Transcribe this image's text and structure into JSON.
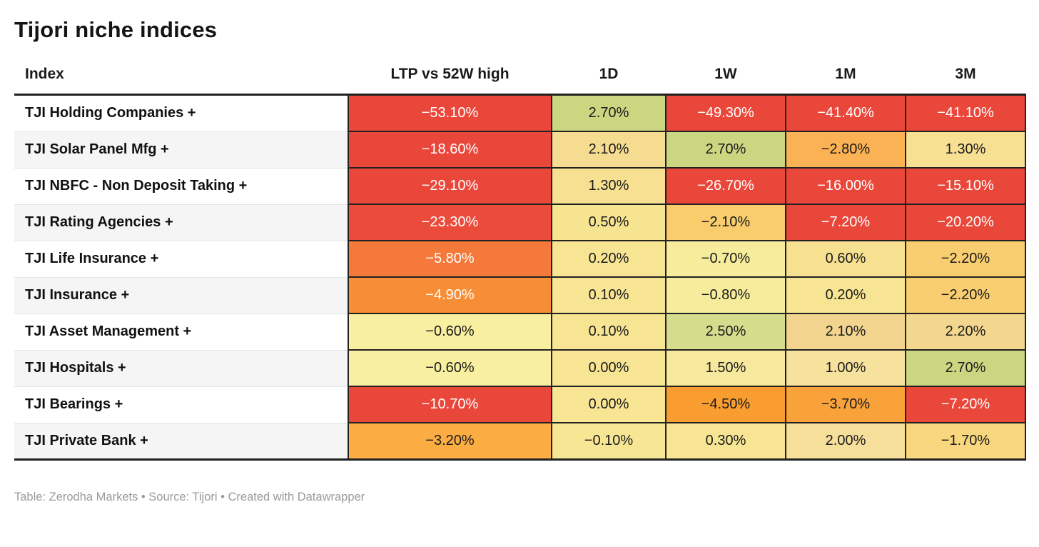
{
  "title": "Tijori niche indices",
  "footer": {
    "text": "Table: Zerodha Markets • Source: Tijori • Created with Datawrapper"
  },
  "table": {
    "columns": [
      {
        "label": "Index"
      },
      {
        "label": "LTP vs 52W high"
      },
      {
        "label": "1D"
      },
      {
        "label": "1W"
      },
      {
        "label": "1M"
      },
      {
        "label": "3M"
      }
    ],
    "rows": [
      {
        "label": "TJI Holding Companies +",
        "cells": [
          {
            "v": "−53.10%",
            "bg": "#EA473B",
            "fg": "#FFFFFF"
          },
          {
            "v": "2.70%",
            "bg": "#CBD681",
            "fg": "#1A1A1A"
          },
          {
            "v": "−49.30%",
            "bg": "#EA473B",
            "fg": "#FFFFFF"
          },
          {
            "v": "−41.40%",
            "bg": "#EA473B",
            "fg": "#FFFFFF"
          },
          {
            "v": "−41.10%",
            "bg": "#EA473B",
            "fg": "#FFFFFF"
          }
        ]
      },
      {
        "label": "TJI Solar Panel Mfg +",
        "cells": [
          {
            "v": "−18.60%",
            "bg": "#EA473B",
            "fg": "#FFFFFF"
          },
          {
            "v": "2.10%",
            "bg": "#F5DC90",
            "fg": "#1A1A1A"
          },
          {
            "v": "2.70%",
            "bg": "#CBD681",
            "fg": "#1A1A1A"
          },
          {
            "v": "−2.80%",
            "bg": "#FBB254",
            "fg": "#1A1A1A"
          },
          {
            "v": "1.30%",
            "bg": "#F7E092",
            "fg": "#1A1A1A"
          }
        ]
      },
      {
        "label": "TJI NBFC - Non Deposit Taking +",
        "cells": [
          {
            "v": "−29.10%",
            "bg": "#EA473B",
            "fg": "#FFFFFF"
          },
          {
            "v": "1.30%",
            "bg": "#F7E092",
            "fg": "#1A1A1A"
          },
          {
            "v": "−26.70%",
            "bg": "#EA473B",
            "fg": "#FFFFFF"
          },
          {
            "v": "−16.00%",
            "bg": "#EA473B",
            "fg": "#FFFFFF"
          },
          {
            "v": "−15.10%",
            "bg": "#EA473B",
            "fg": "#FFFFFF"
          }
        ]
      },
      {
        "label": "TJI Rating Agencies +",
        "cells": [
          {
            "v": "−23.30%",
            "bg": "#EB4B3B",
            "fg": "#FFFFFF"
          },
          {
            "v": "0.50%",
            "bg": "#F7E491",
            "fg": "#1A1A1A"
          },
          {
            "v": "−2.10%",
            "bg": "#F9CC6C",
            "fg": "#1A1A1A"
          },
          {
            "v": "−7.20%",
            "bg": "#EA473B",
            "fg": "#FFFFFF"
          },
          {
            "v": "−20.20%",
            "bg": "#EA473B",
            "fg": "#FFFFFF"
          }
        ]
      },
      {
        "label": "TJI Life Insurance +",
        "cells": [
          {
            "v": "−5.80%",
            "bg": "#F4793B",
            "fg": "#FFFFFF"
          },
          {
            "v": "0.20%",
            "bg": "#F7E593",
            "fg": "#1A1A1A"
          },
          {
            "v": "−0.70%",
            "bg": "#F6EC9C",
            "fg": "#1A1A1A"
          },
          {
            "v": "0.60%",
            "bg": "#F7E191",
            "fg": "#1A1A1A"
          },
          {
            "v": "−2.20%",
            "bg": "#F9CE70",
            "fg": "#1A1A1A"
          }
        ]
      },
      {
        "label": "TJI Insurance +",
        "cells": [
          {
            "v": "−4.90%",
            "bg": "#F78D35",
            "fg": "#FFFFFF"
          },
          {
            "v": "0.10%",
            "bg": "#F7E593",
            "fg": "#1A1A1A"
          },
          {
            "v": "−0.80%",
            "bg": "#F6EC9C",
            "fg": "#1A1A1A"
          },
          {
            "v": "0.20%",
            "bg": "#F7E593",
            "fg": "#1A1A1A"
          },
          {
            "v": "−2.20%",
            "bg": "#F9CE70",
            "fg": "#1A1A1A"
          }
        ]
      },
      {
        "label": "TJI Asset Management +",
        "cells": [
          {
            "v": "−0.60%",
            "bg": "#F8EFA1",
            "fg": "#1A1A1A"
          },
          {
            "v": "0.10%",
            "bg": "#F7E593",
            "fg": "#1A1A1A"
          },
          {
            "v": "2.50%",
            "bg": "#D5DC8B",
            "fg": "#1A1A1A"
          },
          {
            "v": "2.10%",
            "bg": "#F2D48F",
            "fg": "#1A1A1A"
          },
          {
            "v": "2.20%",
            "bg": "#F3D78E",
            "fg": "#1A1A1A"
          }
        ]
      },
      {
        "label": "TJI Hospitals +",
        "cells": [
          {
            "v": "−0.60%",
            "bg": "#F8EFA1",
            "fg": "#1A1A1A"
          },
          {
            "v": "0.00%",
            "bg": "#F7E593",
            "fg": "#1A1A1A"
          },
          {
            "v": "1.50%",
            "bg": "#F6E89C",
            "fg": "#1A1A1A"
          },
          {
            "v": "1.00%",
            "bg": "#F6E29C",
            "fg": "#1A1A1A"
          },
          {
            "v": "2.70%",
            "bg": "#CBD681",
            "fg": "#1A1A1A"
          }
        ]
      },
      {
        "label": "TJI Bearings +",
        "cells": [
          {
            "v": "−10.70%",
            "bg": "#EA473B",
            "fg": "#FFFFFF"
          },
          {
            "v": "0.00%",
            "bg": "#F7E593",
            "fg": "#1A1A1A"
          },
          {
            "v": "−4.50%",
            "bg": "#F99D30",
            "fg": "#1A1A1A"
          },
          {
            "v": "−3.70%",
            "bg": "#FAA23A",
            "fg": "#1A1A1A"
          },
          {
            "v": "−7.20%",
            "bg": "#EA473B",
            "fg": "#FFFFFF"
          }
        ]
      },
      {
        "label": "TJI Private Bank +",
        "cells": [
          {
            "v": "−3.20%",
            "bg": "#FBAD43",
            "fg": "#1A1A1A"
          },
          {
            "v": "−0.10%",
            "bg": "#F7E794",
            "fg": "#1A1A1A"
          },
          {
            "v": "0.30%",
            "bg": "#F7E593",
            "fg": "#1A1A1A"
          },
          {
            "v": "2.00%",
            "bg": "#F6DF9A",
            "fg": "#1A1A1A"
          },
          {
            "v": "−1.70%",
            "bg": "#F9D77E",
            "fg": "#1A1A1A"
          }
        ]
      }
    ]
  },
  "chart_data": {
    "type": "table",
    "title": "Tijori niche indices",
    "columns": [
      "Index",
      "LTP vs 52W high",
      "1D",
      "1W",
      "1M",
      "3M"
    ],
    "rows": [
      [
        "TJI Holding Companies +",
        -53.1,
        2.7,
        -49.3,
        -41.4,
        -41.1
      ],
      [
        "TJI Solar Panel Mfg +",
        -18.6,
        2.1,
        2.7,
        -2.8,
        1.3
      ],
      [
        "TJI NBFC - Non Deposit Taking +",
        -29.1,
        1.3,
        -26.7,
        -16.0,
        -15.1
      ],
      [
        "TJI Rating Agencies +",
        -23.3,
        0.5,
        -2.1,
        -7.2,
        -20.2
      ],
      [
        "TJI Life Insurance +",
        -5.8,
        0.2,
        -0.7,
        0.6,
        -2.2
      ],
      [
        "TJI Insurance +",
        -4.9,
        0.1,
        -0.8,
        0.2,
        -2.2
      ],
      [
        "TJI Asset Management +",
        -0.6,
        0.1,
        2.5,
        2.1,
        2.2
      ],
      [
        "TJI Hospitals +",
        -0.6,
        0.0,
        1.5,
        1.0,
        2.7
      ],
      [
        "TJI Bearings +",
        -10.7,
        0.0,
        -4.5,
        -3.7,
        -7.2
      ],
      [
        "TJI Private Bank +",
        -3.2,
        -0.1,
        0.3,
        2.0,
        -1.7
      ]
    ],
    "heatmap": true,
    "units": "percent",
    "palette": "diverging red-orange-yellow-green",
    "colors": {
      "negative_strong": "#EA473B",
      "negative_mild": "#FBAD43",
      "neutral": "#F7E593",
      "positive_strong": "#CBD681"
    }
  }
}
